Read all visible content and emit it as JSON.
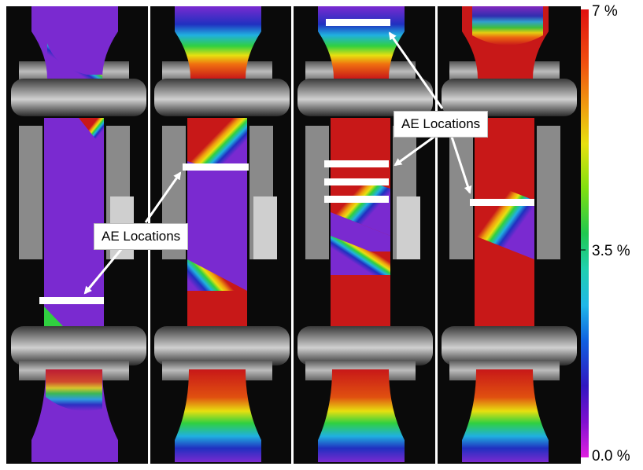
{
  "colorbar": {
    "max_label": "7 %",
    "mid_label": "3.5 %",
    "min_label": "0.0 %",
    "colors": [
      "#e01010",
      "#f05010",
      "#f0a010",
      "#e8e010",
      "#a0e010",
      "#20d020",
      "#20d0a0",
      "#20c0e0",
      "#1060e0",
      "#2020c0",
      "#6010d0",
      "#9010d0",
      "#d020e0"
    ]
  },
  "annotations": {
    "left_label": "AE Locations",
    "right_label": "AE Locations"
  },
  "strain_colors": {
    "low": "#7a2ad0",
    "high": "#c81818"
  }
}
